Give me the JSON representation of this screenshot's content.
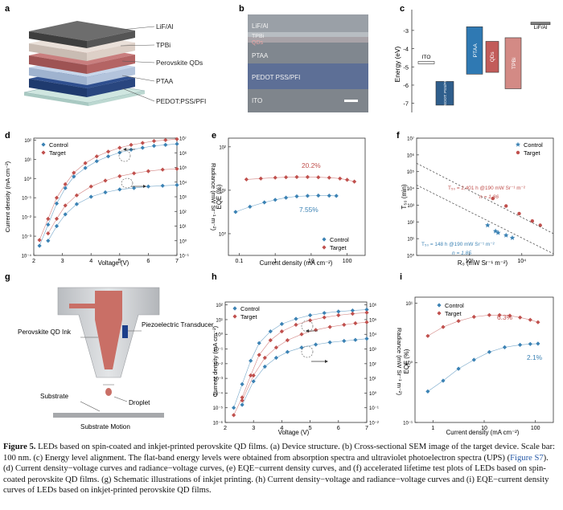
{
  "panels": {
    "a": {
      "letter": "a",
      "layers": [
        "LiF/Al",
        "TPBi",
        "Perovskite QDs",
        "PTAA",
        "PEDOT:PSS/PFI"
      ]
    },
    "b": {
      "letter": "b",
      "labels": [
        "LiF/Al",
        "TPBi",
        "QDs",
        "PTAA",
        "PEDOT PSS/PFI",
        "ITO"
      ]
    },
    "c": {
      "letter": "c",
      "ylabel": "Energy (eV)",
      "yticks": [
        "-3",
        "-4",
        "-5",
        "-6",
        "-7"
      ],
      "labels": {
        "ito": "ITO",
        "pedot": "PEDOT: PSS/PFI",
        "ptaa": "PTAA",
        "qds": "QDs",
        "tpbi": "TPBi",
        "lif": "LiF/Al"
      }
    },
    "d": {
      "letter": "d",
      "xlabel": "Voltage (V)",
      "ylabel": "Current density (mA cm⁻²)",
      "y2label": "Radiance (mW Sr⁻¹ m⁻²)",
      "xticks": [
        "2",
        "3",
        "4",
        "5",
        "6",
        "7"
      ]
    },
    "e": {
      "letter": "e",
      "xlabel": "Current density (mA cm⁻²)",
      "ylabel": "EQE (%)",
      "xticks": [
        "0.1",
        "1",
        "10",
        "100"
      ],
      "annotations": [
        "20.2%",
        "7.55%"
      ]
    },
    "f": {
      "letter": "f",
      "xlabel": "R₀ (mW Sr⁻¹ m⁻²)",
      "ylabel": "T₅₀ (min)",
      "xticks": [
        "10³",
        "10⁴"
      ],
      "target_note": "T₅₀ = 2,401 h @190 mW Sr⁻¹ m⁻²",
      "target_n": "n = 1.86",
      "control_note": "T₅₀ = 148 h @190 mW Sr⁻¹ m⁻²",
      "control_n": "n = 1.85"
    },
    "g": {
      "letter": "g",
      "labels": [
        "Perovskite QD Ink",
        "Piezoelectric Transducer",
        "Substrate",
        "Droplet",
        "Substrate Motion"
      ]
    },
    "h": {
      "letter": "h",
      "xlabel": "Voltage (V)",
      "ylabel": "Current density (mA cm⁻²)",
      "y2label": "Radiance (mW Sr⁻¹ m⁻²)",
      "xticks": [
        "2",
        "3",
        "4",
        "5",
        "6",
        "7"
      ]
    },
    "i": {
      "letter": "i",
      "xlabel": "Current density (mA cm⁻²)",
      "ylabel": "EQE (%)",
      "xticks": [
        "1",
        "10",
        "100"
      ],
      "annotations": [
        "6.3%",
        "2.1%"
      ]
    }
  },
  "legend": {
    "control": "Control",
    "target": "Target"
  },
  "colors": {
    "control": "#3b82b4",
    "target": "#c0504d"
  },
  "chart_data": [
    {
      "panel": "c",
      "type": "bar",
      "title": "Energy level alignment",
      "ylabel": "Energy (eV)",
      "ylim": [
        -7.5,
        -2.3
      ],
      "bands": [
        {
          "name": "ITO",
          "top": -4.7,
          "bottom": -4.8
        },
        {
          "name": "PEDOT:PSS/PFI",
          "top": -5.8,
          "bottom": -7.1
        },
        {
          "name": "PTAA",
          "top": -2.8,
          "bottom": -5.4
        },
        {
          "name": "QDs",
          "top": -3.6,
          "bottom": -5.3
        },
        {
          "name": "TPBi",
          "top": -3.4,
          "bottom": -6.2
        },
        {
          "name": "LiF/Al",
          "top": -2.55,
          "bottom": -2.68
        }
      ]
    },
    {
      "panel": "d",
      "type": "scatter",
      "xlabel": "Voltage (V)",
      "ylabel": "Current density (mA cm⁻²)",
      "xlim": [
        2,
        7
      ],
      "ylog": [
        -4,
        2.1
      ],
      "y2log": [
        -1,
        7
      ],
      "series": [
        {
          "name": "Control J",
          "axis": "left",
          "x": [
            2.2,
            2.5,
            2.8,
            3.1,
            3.4,
            3.8,
            4.2,
            4.6,
            5.0,
            5.4,
            5.8,
            6.2,
            6.6,
            7.0
          ],
          "logy": [
            -3.5,
            -2.4,
            -1.3,
            -0.5,
            0.1,
            0.55,
            0.9,
            1.15,
            1.35,
            1.5,
            1.6,
            1.7,
            1.75,
            1.8
          ]
        },
        {
          "name": "Target J",
          "axis": "left",
          "x": [
            2.2,
            2.5,
            2.8,
            3.1,
            3.4,
            3.8,
            4.2,
            4.6,
            5.0,
            5.4,
            5.8,
            6.2,
            6.6,
            7.0
          ],
          "logy": [
            -3.2,
            -2.1,
            -1.0,
            -0.3,
            0.3,
            0.8,
            1.15,
            1.4,
            1.6,
            1.75,
            1.85,
            1.95,
            2.0,
            2.05
          ]
        },
        {
          "name": "Control radiance",
          "axis": "right",
          "x": [
            2.5,
            2.8,
            3.1,
            3.5,
            4.0,
            4.5,
            5.0,
            5.5,
            6.0,
            6.5,
            7.0
          ],
          "logy": [
            0.0,
            1.0,
            1.8,
            2.5,
            3.0,
            3.3,
            3.5,
            3.6,
            3.7,
            3.75,
            3.8
          ]
        },
        {
          "name": "Target radiance",
          "axis": "right",
          "x": [
            2.5,
            2.8,
            3.1,
            3.5,
            4.0,
            4.5,
            5.0,
            5.5,
            6.0,
            6.5,
            7.0
          ],
          "logy": [
            0.5,
            1.5,
            2.4,
            3.1,
            3.7,
            4.1,
            4.4,
            4.6,
            4.75,
            4.85,
            4.9
          ]
        }
      ]
    },
    {
      "panel": "e",
      "type": "scatter",
      "xlabel": "Current density (mA cm⁻²)",
      "ylabel": "EQE (%)",
      "xlog": [
        -1.3,
        2.5
      ],
      "ylog": [
        -0.5,
        2.2
      ],
      "series": [
        {
          "name": "Control",
          "logx": [
            -1.1,
            -0.7,
            -0.3,
            0.0,
            0.3,
            0.6,
            0.9,
            1.2,
            1.5,
            1.7
          ],
          "logy": [
            0.5,
            0.62,
            0.72,
            0.78,
            0.83,
            0.86,
            0.87,
            0.878,
            0.875,
            0.87
          ]
        },
        {
          "name": "Target",
          "logx": [
            -0.8,
            -0.4,
            0.0,
            0.3,
            0.6,
            0.9,
            1.2,
            1.5,
            1.8,
            2.0,
            2.2
          ],
          "logy": [
            1.25,
            1.27,
            1.29,
            1.3,
            1.305,
            1.305,
            1.3,
            1.29,
            1.27,
            1.24,
            1.2
          ]
        }
      ]
    },
    {
      "panel": "f",
      "type": "scatter",
      "xlabel": "R₀ (mW Sr⁻¹ m⁻²)",
      "ylabel": "T₅₀ (min)",
      "xlog": [
        2.0,
        4.6
      ],
      "ylog": [
        0,
        7
      ],
      "series": [
        {
          "name": "Control",
          "logx": [
            3.35,
            3.5,
            3.55,
            3.7,
            3.82
          ],
          "logy": [
            1.8,
            1.45,
            1.35,
            1.2,
            1.05
          ]
        },
        {
          "name": "Target",
          "logx": [
            3.45,
            3.7,
            3.95,
            4.2,
            4.35
          ],
          "logy": [
            3.4,
            2.95,
            2.5,
            2.05,
            1.8
          ]
        }
      ]
    },
    {
      "panel": "h",
      "type": "scatter",
      "xlabel": "Voltage (V)",
      "ylabel": "Current density (mA cm⁻²)",
      "xlim": [
        2,
        7
      ],
      "ylog": [
        -6,
        2.2
      ],
      "y2log": [
        -2,
        6.2
      ],
      "series": [
        {
          "name": "Control J",
          "axis": "left",
          "x": [
            2.3,
            2.6,
            2.9,
            3.2,
            3.6,
            4.0,
            4.5,
            5.0,
            5.5,
            6.0,
            6.5,
            7.0
          ],
          "logy": [
            -5.0,
            -3.4,
            -1.8,
            -0.6,
            0.2,
            0.7,
            1.05,
            1.3,
            1.45,
            1.55,
            1.62,
            1.68
          ]
        },
        {
          "name": "Target J",
          "axis": "left",
          "x": [
            2.3,
            2.6,
            2.9,
            3.2,
            3.6,
            4.0,
            4.5,
            5.0,
            5.5,
            6.0,
            6.5,
            7.0
          ],
          "logy": [
            -5.5,
            -4.3,
            -2.8,
            -1.4,
            -0.4,
            0.2,
            0.65,
            0.95,
            1.15,
            1.3,
            1.4,
            1.48
          ]
        },
        {
          "name": "Control radiance",
          "axis": "right",
          "x": [
            2.6,
            3.0,
            3.4,
            3.8,
            4.2,
            4.7,
            5.2,
            5.7,
            6.2,
            6.6,
            7.0
          ],
          "logy": [
            -0.8,
            0.8,
            1.8,
            2.4,
            2.8,
            3.1,
            3.3,
            3.45,
            3.55,
            3.62,
            3.7
          ]
        },
        {
          "name": "Target radiance",
          "axis": "right",
          "x": [
            2.6,
            3.0,
            3.4,
            3.8,
            4.2,
            4.7,
            5.2,
            5.7,
            6.2,
            6.6,
            7.0
          ],
          "logy": [
            -0.5,
            1.2,
            2.4,
            3.1,
            3.6,
            4.0,
            4.3,
            4.5,
            4.65,
            4.75,
            4.82
          ]
        }
      ]
    },
    {
      "panel": "i",
      "type": "scatter",
      "xlabel": "Current density (mA cm⁻²)",
      "ylabel": "EQE (%)",
      "xlog": [
        -0.35,
        2.35
      ],
      "ylog": [
        -1,
        1.1
      ],
      "series": [
        {
          "name": "Control",
          "logx": [
            -0.1,
            0.2,
            0.5,
            0.8,
            1.1,
            1.4,
            1.7,
            1.9,
            2.05
          ],
          "logy": [
            -0.48,
            -0.3,
            -0.1,
            0.05,
            0.18,
            0.26,
            0.3,
            0.315,
            0.32
          ]
        },
        {
          "name": "Target",
          "logx": [
            -0.1,
            0.2,
            0.5,
            0.8,
            1.1,
            1.3,
            1.5,
            1.7,
            1.9,
            2.05
          ],
          "logy": [
            0.45,
            0.6,
            0.7,
            0.77,
            0.8,
            0.8,
            0.79,
            0.76,
            0.72,
            0.68
          ]
        }
      ]
    }
  ],
  "caption": {
    "label": "Figure 5.",
    "part1": " LEDs based on spin-coated and inkjet-printed perovskite QD films. (a) Device structure. (b) Cross-sectional SEM image of the target device. Scale bar: 100 nm. (c) Energy level alignment. The flat-band energy levels were obtained from absorption spectra and ultraviolet photoelectron spectra (UPS) (",
    "link": "Figure S7",
    "part2": "). (d) Current density−voltage curves and radiance−voltage curves, (e) EQE−current density curves, and (f) accelerated lifetime test plots of LEDs based on spin-coated perovskite QD films. (g) Schematic illustrations of inkjet printing. (h) Current density−voltage and radiance−voltage curves and (i) EQE−current density curves of LEDs based on inkjet-printed perovskite QD films."
  }
}
